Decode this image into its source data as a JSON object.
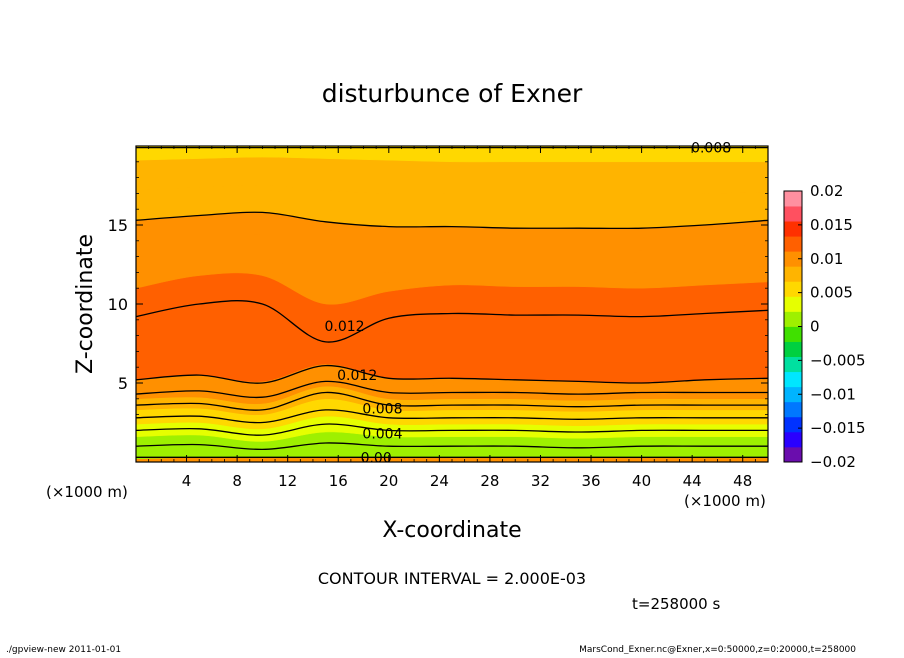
{
  "chart_data": {
    "type": "contour",
    "title": "disturbunce of Exner",
    "xlabel": "X-coordinate",
    "ylabel": "Z-coordinate",
    "x_unit_left": "(×1000 m)",
    "x_unit_right": "(×1000 m)",
    "xlim": [
      0,
      50
    ],
    "ylim": [
      0,
      20
    ],
    "x_ticks": [
      4,
      8,
      12,
      16,
      20,
      24,
      28,
      32,
      36,
      40,
      44,
      48
    ],
    "y_ticks": [
      5,
      10,
      15
    ],
    "contour_interval_text": "CONTOUR INTERVAL = 2.000E-03",
    "time_text": "t=258000 s",
    "colorbar": {
      "min": -0.02,
      "max": 0.02,
      "tick_values": [
        0.02,
        0.015,
        0.01,
        0.005,
        0,
        -0.005,
        -0.01,
        -0.015,
        -0.02
      ],
      "tick_labels": [
        "0.02",
        "0.015",
        "0.01",
        "0.005",
        "0",
        "−0.005",
        "−0.01",
        "−0.015",
        "−0.02"
      ],
      "colors_low_to_high": [
        "#6a0dad",
        "#2a00ff",
        "#0032ff",
        "#0078ff",
        "#00b4ff",
        "#00e6ff",
        "#00e0a0",
        "#00d040",
        "#40e000",
        "#9ef000",
        "#e6ff00",
        "#ffd800",
        "#ffb400",
        "#ff9000",
        "#ff6000",
        "#ff3000",
        "#ff5060",
        "#ff90a0"
      ]
    },
    "bands": [
      {
        "value": 0.0,
        "z": [
          0.2,
          0.3,
          0.3,
          0.3,
          0.3,
          0.3,
          0.3,
          0.3,
          0.3,
          0.3,
          0.3
        ]
      },
      {
        "value": 0.001,
        "z": [
          0.6,
          0.7,
          0.5,
          0.8,
          0.6,
          0.6,
          0.6,
          0.6,
          0.6,
          0.6,
          0.6
        ]
      },
      {
        "value": 0.002,
        "z": [
          1.1,
          1.2,
          0.9,
          1.3,
          1.1,
          1.1,
          1.1,
          1.0,
          1.1,
          1.1,
          1.1
        ]
      },
      {
        "value": 0.003,
        "z": [
          1.6,
          1.7,
          1.3,
          1.9,
          1.6,
          1.6,
          1.6,
          1.5,
          1.6,
          1.6,
          1.6
        ]
      },
      {
        "value": 0.004,
        "z": [
          2.0,
          2.1,
          1.7,
          2.4,
          2.0,
          2.0,
          2.0,
          1.9,
          2.0,
          2.0,
          2.0
        ]
      },
      {
        "value": 0.005,
        "z": [
          2.4,
          2.5,
          2.1,
          2.9,
          2.4,
          2.4,
          2.4,
          2.3,
          2.4,
          2.4,
          2.4
        ]
      },
      {
        "value": 0.006,
        "z": [
          2.9,
          3.0,
          2.6,
          3.5,
          2.9,
          2.9,
          2.9,
          2.8,
          2.9,
          2.9,
          2.9
        ]
      },
      {
        "value": 0.007,
        "z": [
          3.3,
          3.4,
          3.0,
          4.0,
          3.3,
          3.3,
          3.3,
          3.2,
          3.3,
          3.3,
          3.3
        ]
      },
      {
        "value": 0.008,
        "z": [
          3.6,
          3.7,
          3.3,
          4.4,
          3.6,
          3.6,
          3.6,
          3.5,
          3.6,
          3.6,
          3.6
        ]
      },
      {
        "value": 0.009,
        "z": [
          4.0,
          4.1,
          3.7,
          4.8,
          4.0,
          4.0,
          4.0,
          3.9,
          4.0,
          4.0,
          4.0
        ]
      },
      {
        "value": 0.01,
        "z": [
          4.4,
          4.6,
          4.2,
          5.3,
          4.5,
          4.5,
          4.5,
          4.4,
          4.5,
          4.5,
          4.5
        ]
      },
      {
        "value": 0.011,
        "z": [
          4.8,
          5.0,
          4.6,
          5.7,
          4.9,
          4.9,
          4.9,
          4.8,
          4.9,
          4.9,
          4.9
        ]
      },
      {
        "value": 0.012,
        "z": [
          5.2,
          5.5,
          5.1,
          6.2,
          5.3,
          5.3,
          5.2,
          5.1,
          5.0,
          5.2,
          5.3
        ]
      },
      {
        "value": 0.013,
        "z": [
          9.2,
          10.0,
          10.0,
          7.6,
          9.1,
          9.4,
          9.3,
          9.3,
          9.2,
          9.4,
          9.6
        ]
      },
      {
        "value": 0.012,
        "z": [
          10.0,
          10.8,
          10.8,
          8.6,
          9.9,
          10.2,
          10.1,
          10.1,
          10.0,
          10.2,
          10.4
        ]
      },
      {
        "value": 0.011,
        "z": [
          11.0,
          11.8,
          11.8,
          10.0,
          10.8,
          11.2,
          11.1,
          11.1,
          11.0,
          11.2,
          11.4
        ]
      },
      {
        "value": 0.01,
        "z": [
          12.2,
          12.8,
          12.9,
          11.8,
          12.0,
          12.3,
          12.2,
          12.2,
          12.0,
          12.2,
          12.4
        ]
      },
      {
        "value": 0.009,
        "z": [
          13.8,
          14.2,
          14.4,
          13.8,
          13.6,
          13.8,
          13.6,
          13.6,
          13.4,
          13.6,
          13.8
        ]
      },
      {
        "value": 0.008,
        "z": [
          15.3,
          15.6,
          15.8,
          15.2,
          14.9,
          14.9,
          14.8,
          14.8,
          14.8,
          15.0,
          15.3
        ]
      },
      {
        "value": 0.007,
        "z": [
          17.2,
          17.4,
          17.5,
          17.2,
          17.0,
          17.0,
          17.0,
          17.0,
          17.0,
          17.0,
          17.1
        ]
      },
      {
        "value": 0.006,
        "z": [
          19.1,
          19.2,
          19.3,
          19.2,
          19.1,
          19.0,
          19.0,
          19.0,
          19.0,
          19.0,
          19.0
        ]
      },
      {
        "value": 0.005,
        "z": [
          20,
          20,
          20,
          20,
          20,
          20,
          20,
          20,
          20,
          20,
          20
        ]
      }
    ],
    "contours": [
      {
        "z": [
          0.3,
          0.3,
          0.3,
          0.3,
          0.3,
          0.3,
          0.3,
          0.3,
          0.3,
          0.3,
          0.3
        ]
      },
      {
        "z": [
          1.0,
          1.1,
          0.8,
          1.2,
          1.0,
          1.0,
          1.0,
          0.9,
          1.0,
          1.0,
          1.0
        ]
      },
      {
        "z": [
          2.0,
          2.1,
          1.7,
          2.4,
          2.0,
          2.0,
          2.0,
          1.9,
          2.0,
          2.0,
          2.0
        ]
      },
      {
        "z": [
          2.8,
          2.9,
          2.5,
          3.3,
          2.8,
          2.8,
          2.8,
          2.7,
          2.8,
          2.8,
          2.8
        ]
      },
      {
        "z": [
          3.6,
          3.7,
          3.3,
          4.4,
          3.6,
          3.6,
          3.6,
          3.5,
          3.6,
          3.6,
          3.6
        ]
      },
      {
        "z": [
          4.3,
          4.5,
          4.1,
          5.1,
          4.4,
          4.4,
          4.4,
          4.3,
          4.4,
          4.4,
          4.4
        ]
      },
      {
        "z": [
          5.2,
          5.5,
          5.0,
          6.1,
          5.3,
          5.3,
          5.2,
          5.1,
          5.0,
          5.2,
          5.3
        ]
      },
      {
        "z": [
          9.2,
          10.0,
          10.0,
          7.6,
          9.1,
          9.4,
          9.3,
          9.3,
          9.2,
          9.4,
          9.6
        ]
      },
      {
        "z": [
          15.3,
          15.6,
          15.8,
          15.2,
          14.9,
          14.9,
          14.8,
          14.8,
          14.8,
          15.0,
          15.3
        ]
      },
      {
        "z": [
          19.9,
          19.9,
          19.9,
          19.9,
          19.9,
          19.9,
          19.9,
          19.9,
          19.9,
          19.9,
          19.9
        ]
      }
    ],
    "contour_labels": [
      {
        "text": "0.008",
        "x": 45.5,
        "y": 19.9
      },
      {
        "text": "0.012",
        "x": 16.5,
        "y": 8.6
      },
      {
        "text": "0.012",
        "x": 17.5,
        "y": 5.5
      },
      {
        "text": "0.008",
        "x": 19.5,
        "y": 3.4
      },
      {
        "text": "0.004",
        "x": 19.5,
        "y": 1.8
      },
      {
        "text": "0.00",
        "x": 19,
        "y": 0.3
      }
    ]
  },
  "footer": {
    "left": "./gpview-new  2011-01-01",
    "right": "MarsCond_Exner.nc@Exner,x=0:50000,z=0:20000,t=258000"
  }
}
